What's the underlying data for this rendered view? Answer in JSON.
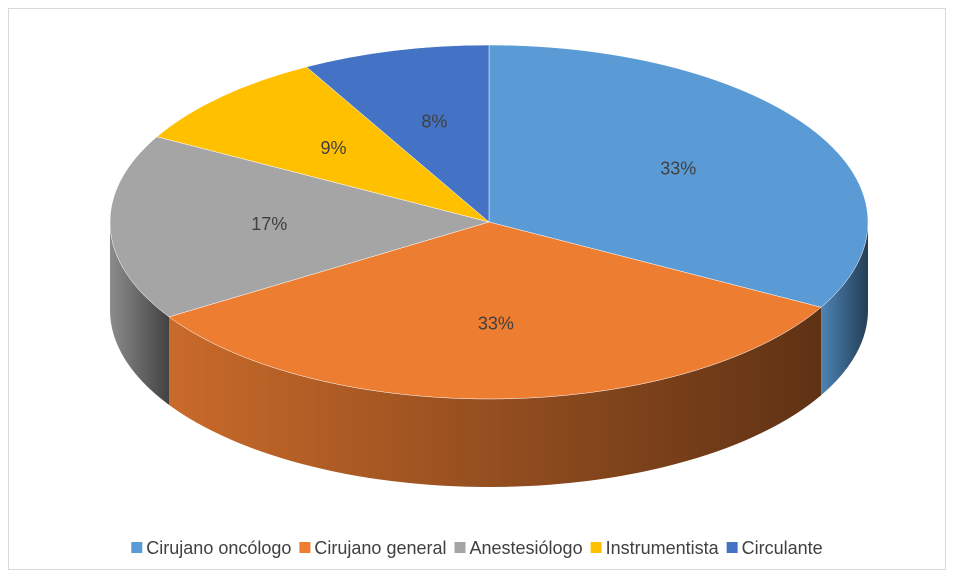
{
  "chart_data": {
    "type": "pie",
    "categories": [
      "Cirujano oncólogo",
      "Cirujano general",
      "Anestesiólogo",
      "Instrumentista",
      "Circulante"
    ],
    "values": [
      33,
      33,
      17,
      9,
      8
    ],
    "value_labels": [
      "33%",
      "33%",
      "17%",
      "9%",
      "8%"
    ],
    "colors": [
      "#5b9bd5",
      "#ed7d31",
      "#a5a5a5",
      "#ffc000",
      "#4472c4"
    ],
    "legend": "bottom"
  }
}
